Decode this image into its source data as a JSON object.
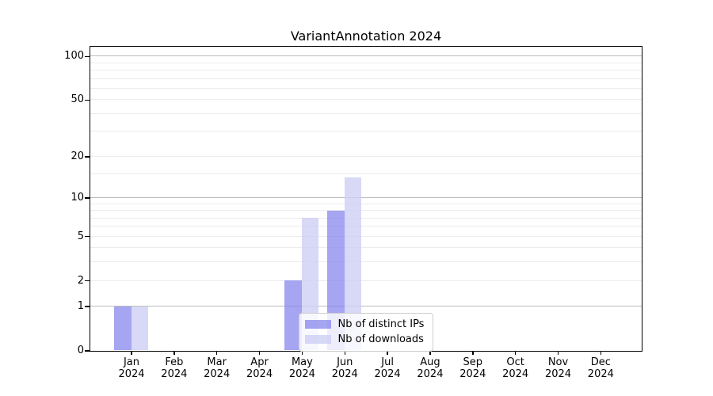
{
  "title": "VariantAnnotation 2024",
  "chart_data": {
    "type": "bar",
    "title": "VariantAnnotation 2024",
    "categories": [
      "Jan 2024",
      "Feb 2024",
      "Mar 2024",
      "Apr 2024",
      "May 2024",
      "Jun 2024",
      "Jul 2024",
      "Aug 2024",
      "Sep 2024",
      "Oct 2024",
      "Nov 2024",
      "Dec 2024"
    ],
    "series": [
      {
        "name": "Nb of distinct IPs",
        "values": [
          1,
          0,
          0,
          0,
          2,
          8,
          0,
          0,
          0,
          0,
          0,
          0
        ],
        "color": "rgba(130,130,235,0.72)",
        "color_hex": "#a6a6f0"
      },
      {
        "name": "Nb of downloads",
        "values": [
          1,
          0,
          0,
          0,
          7,
          14,
          0,
          0,
          0,
          0,
          0,
          0
        ],
        "color": "rgba(205,205,245,0.78)",
        "color_hex": "#dcdcf8"
      }
    ],
    "yscale": "log1p",
    "ylim": [
      0,
      117
    ],
    "yticks_major": [
      0,
      1,
      2,
      5,
      10,
      20,
      50,
      100
    ],
    "yticks_minor": [
      3,
      4,
      6,
      7,
      8,
      9,
      15,
      30,
      40,
      60,
      70,
      80,
      90
    ],
    "grid": "on",
    "legend_position": "lower center-right inside plot",
    "axis_color": "#000000",
    "grid_major_color": "#bdbdbd",
    "grid_minor_color": "#ececec"
  }
}
